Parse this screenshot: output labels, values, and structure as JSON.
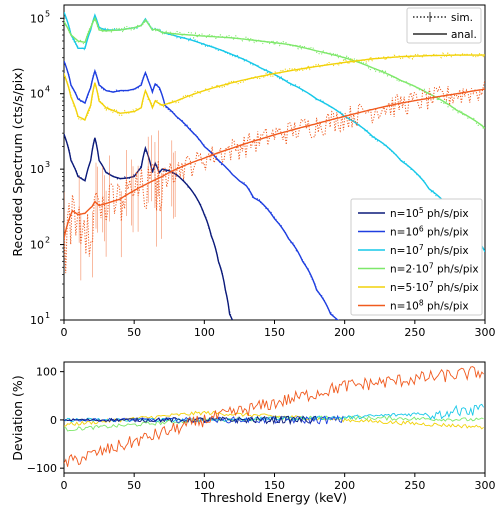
{
  "chart_data": [
    {
      "type": "line",
      "panel": "top",
      "title": "",
      "xlabel": "",
      "ylabel": "Recorded Spectrum (cts/s/pix)",
      "xlim": [
        0,
        300
      ],
      "ylim": [
        10,
        150000
      ],
      "yscale": "log",
      "xticks": [
        0,
        50,
        100,
        150,
        200,
        250,
        300
      ],
      "yticks": [
        {
          "v": 10,
          "label": "10",
          "sup": "1"
        },
        {
          "v": 100,
          "label": "10",
          "sup": "2"
        },
        {
          "v": 1000,
          "label": "10",
          "sup": "3"
        },
        {
          "v": 10000,
          "label": "10",
          "sup": "4"
        },
        {
          "v": 100000,
          "label": "10",
          "sup": "5"
        }
      ],
      "style_legend": [
        {
          "label": "sim.",
          "style": "dotted with error bars"
        },
        {
          "label": "anal.",
          "style": "solid"
        }
      ],
      "series": [
        {
          "label": "n=10",
          "sup": "5",
          "unit": " ph/s/pix",
          "color": "#0b1a7a",
          "x": [
            0,
            5,
            10,
            15,
            19,
            22,
            25,
            30,
            35,
            40,
            45,
            50,
            55,
            58,
            60,
            63,
            65,
            68,
            70,
            75,
            80,
            85,
            90,
            95,
            100,
            105,
            110,
            115,
            118,
            120
          ],
          "y": [
            2900,
            1300,
            800,
            700,
            1300,
            2600,
            1300,
            900,
            800,
            750,
            760,
            800,
            1050,
            1900,
            1500,
            900,
            1200,
            900,
            1000,
            950,
            850,
            700,
            550,
            400,
            250,
            130,
            60,
            25,
            12,
            10
          ]
        },
        {
          "label": "n=10",
          "sup": "6",
          "unit": " ph/s/pix",
          "color": "#1f3fe0",
          "x": [
            0,
            5,
            10,
            15,
            19,
            22,
            25,
            30,
            35,
            40,
            45,
            50,
            55,
            58,
            60,
            63,
            65,
            68,
            72,
            80,
            90,
            100,
            110,
            120,
            125,
            130,
            135,
            140,
            150,
            160,
            170,
            180,
            190,
            195,
            200
          ],
          "y": [
            27000,
            13000,
            8500,
            7500,
            12000,
            20000,
            13000,
            11000,
            10500,
            11000,
            11000,
            11500,
            13000,
            19000,
            15000,
            10500,
            13500,
            12000,
            7000,
            5000,
            3300,
            2000,
            1300,
            850,
            700,
            600,
            420,
            370,
            220,
            120,
            60,
            25,
            12,
            10,
            9
          ]
        },
        {
          "label": "n=10",
          "sup": "7",
          "unit": " ph/s/pix",
          "color": "#17c8e8",
          "x": [
            0,
            5,
            10,
            15,
            19,
            22,
            25,
            30,
            40,
            50,
            55,
            58,
            60,
            63,
            65,
            70,
            80,
            90,
            100,
            120,
            140,
            160,
            180,
            200,
            220,
            240,
            260,
            280,
            300
          ],
          "y": [
            120000,
            60000,
            40000,
            40000,
            70000,
            110000,
            75000,
            70000,
            70000,
            75000,
            80000,
            98000,
            85000,
            70000,
            72000,
            65000,
            58000,
            52000,
            45000,
            33000,
            22000,
            14000,
            8500,
            5000,
            2700,
            1300,
            550,
            220,
            80
          ]
        },
        {
          "label": "n=2·10",
          "sup": "7",
          "unit": " ph/s/pix",
          "color": "#7ee86a",
          "x": [
            0,
            5,
            10,
            15,
            19,
            22,
            25,
            30,
            40,
            50,
            55,
            58,
            60,
            63,
            65,
            70,
            80,
            100,
            120,
            140,
            160,
            180,
            200,
            220,
            240,
            260,
            280,
            300
          ],
          "y": [
            90000,
            60000,
            50000,
            48000,
            75000,
            100000,
            70000,
            68000,
            70000,
            75000,
            80000,
            95000,
            85000,
            70000,
            72000,
            65000,
            62000,
            58000,
            55000,
            50000,
            45000,
            37000,
            30000,
            22000,
            15000,
            10000,
            6000,
            3500
          ]
        },
        {
          "label": "n=5·10",
          "sup": "7",
          "unit": " ph/s/pix",
          "color": "#f2d20a",
          "x": [
            0,
            5,
            10,
            15,
            19,
            22,
            25,
            30,
            40,
            50,
            55,
            58,
            60,
            63,
            65,
            70,
            80,
            90,
            100,
            120,
            140,
            160,
            180,
            200,
            220,
            240,
            260,
            280,
            300
          ],
          "y": [
            18000,
            9000,
            5000,
            4500,
            7000,
            14000,
            8000,
            6500,
            5500,
            5800,
            6500,
            11000,
            9000,
            6500,
            8000,
            7000,
            8000,
            9500,
            11000,
            14000,
            17000,
            20000,
            23000,
            26000,
            29000,
            31000,
            32000,
            32500,
            32500
          ]
        },
        {
          "label": "n=10",
          "sup": "8",
          "unit": " ph/s/pix",
          "color": "#f05a1e",
          "x": [
            0,
            3,
            6,
            10,
            15,
            20,
            22,
            25,
            30,
            40,
            50,
            60,
            70,
            80,
            100,
            120,
            140,
            160,
            180,
            200,
            220,
            240,
            260,
            280,
            300
          ],
          "y": [
            120,
            200,
            280,
            250,
            260,
            320,
            370,
            330,
            350,
            400,
            520,
            650,
            800,
            1000,
            1400,
            1900,
            2500,
            3200,
            4000,
            5000,
            6200,
            7500,
            8700,
            10000,
            11500
          ]
        }
      ]
    },
    {
      "type": "line",
      "panel": "bottom",
      "title": "",
      "xlabel": "Threshold Energy (keV)",
      "ylabel": "Deviation (%)",
      "xlim": [
        0,
        300
      ],
      "ylim": [
        -110,
        120
      ],
      "xticks": [
        0,
        50,
        100,
        150,
        200,
        250,
        300
      ],
      "yticks": [
        -100,
        0,
        100
      ],
      "series": [
        {
          "color": "#0b1a7a",
          "x_end": 180,
          "trend": [
            0,
            0,
            0,
            0
          ]
        },
        {
          "color": "#1f3fe0",
          "x_end": 200,
          "trend": [
            0,
            0,
            0,
            0
          ]
        },
        {
          "color": "#17c8e8",
          "x_end": 300,
          "trend": [
            0,
            0,
            5,
            20
          ]
        },
        {
          "color": "#7ee86a",
          "x_end": 300,
          "trend": [
            -20,
            0,
            5,
            0
          ]
        },
        {
          "color": "#f2d20a",
          "x_end": 300,
          "trend": [
            -10,
            15,
            0,
            -15
          ]
        },
        {
          "color": "#f05a1e",
          "x_end": 300,
          "trend": [
            -90,
            0,
            70,
            100
          ]
        }
      ]
    }
  ]
}
